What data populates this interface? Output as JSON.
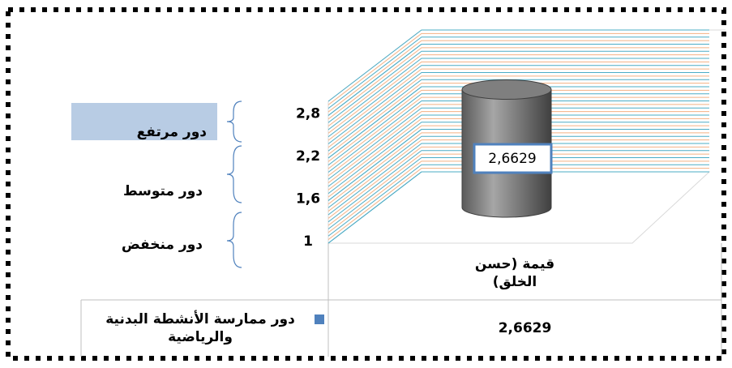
{
  "chart_data": {
    "type": "bar",
    "categories": [
      "قيمة (حسن الخلق)"
    ],
    "series": [
      {
        "name": "دور ممارسة الأنشطة البدنية والرياضية",
        "color": "#7f7f7f",
        "values": [
          2.6629
        ],
        "value_labels": [
          "2,6629"
        ]
      }
    ],
    "legend_marker_color": "#4f81bd",
    "ylim": [
      1,
      3
    ],
    "yticks": [
      1,
      {
        "value": 1.6,
        "label": "1,6"
      },
      {
        "value": 2.2,
        "label": "2,2"
      },
      {
        "value": 2.8,
        "label": "2,8"
      }
    ],
    "grid": true,
    "annotations": [
      "دور مرتفع",
      "دور متوسط",
      "دور منخفض"
    ]
  }
}
